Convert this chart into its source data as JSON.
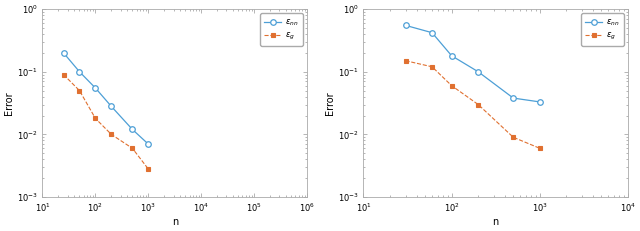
{
  "left": {
    "blue_x": [
      25,
      50,
      100,
      200,
      500,
      1000
    ],
    "blue_y": [
      0.2,
      0.1,
      0.055,
      0.028,
      0.012,
      0.007
    ],
    "orange_x": [
      25,
      50,
      100,
      200,
      500,
      1000
    ],
    "orange_y": [
      0.09,
      0.05,
      0.018,
      0.01,
      0.006,
      0.0028
    ],
    "xlim": [
      10,
      1000000
    ],
    "ylim": [
      0.001,
      1.0
    ],
    "xlabel": "n",
    "ylabel": "Error"
  },
  "right": {
    "blue_x": [
      30,
      60,
      100,
      200,
      500,
      1000
    ],
    "blue_y": [
      0.55,
      0.42,
      0.18,
      0.1,
      0.038,
      0.033
    ],
    "orange_x": [
      30,
      60,
      100,
      200,
      500,
      1000
    ],
    "orange_y": [
      0.15,
      0.12,
      0.06,
      0.03,
      0.009,
      0.006
    ],
    "xlim": [
      10,
      10000
    ],
    "ylim": [
      0.001,
      1.0
    ],
    "xlabel": "n",
    "ylabel": "Error"
  },
  "blue_color": "#4d9fd6",
  "orange_color": "#e07030",
  "legend_blue": "$\\epsilon_{nn}$",
  "legend_orange": "$\\epsilon_g$"
}
